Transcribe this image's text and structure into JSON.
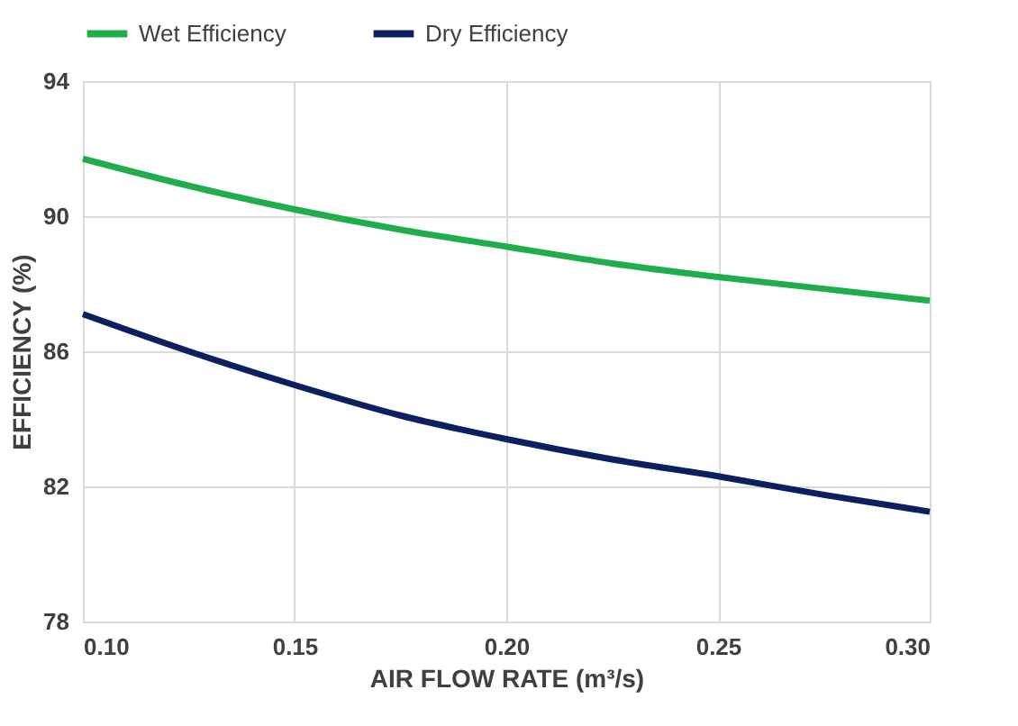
{
  "chart_data": {
    "type": "line",
    "xlabel": "AIR FLOW RATE (m³/s)",
    "ylabel": "EFFICIENCY (%)",
    "x": [
      0.1,
      0.125,
      0.15,
      0.175,
      0.2,
      0.225,
      0.25,
      0.275,
      0.3
    ],
    "series": [
      {
        "name": "Wet Efficiency",
        "color": "#1fae4b",
        "values": [
          91.7,
          90.9,
          90.2,
          89.6,
          89.1,
          88.6,
          88.2,
          87.85,
          87.5
        ]
      },
      {
        "name": "Dry Efficiency",
        "color": "#0c1f5e",
        "values": [
          87.1,
          86.0,
          85.0,
          84.1,
          83.4,
          82.8,
          82.3,
          81.75,
          81.25
        ]
      }
    ],
    "xlim": [
      0.1,
      0.3
    ],
    "xticks": [
      {
        "value": 0.1,
        "label": "0.10"
      },
      {
        "value": 0.15,
        "label": "0.15"
      },
      {
        "value": 0.2,
        "label": "0.20"
      },
      {
        "value": 0.25,
        "label": "0.25"
      },
      {
        "value": 0.3,
        "label": "0.30"
      }
    ],
    "ylim": [
      78,
      94
    ],
    "yticks": [
      78,
      82,
      86,
      90,
      94
    ],
    "grid": true,
    "legend": "top",
    "marker": "none",
    "line_style": "solid"
  }
}
